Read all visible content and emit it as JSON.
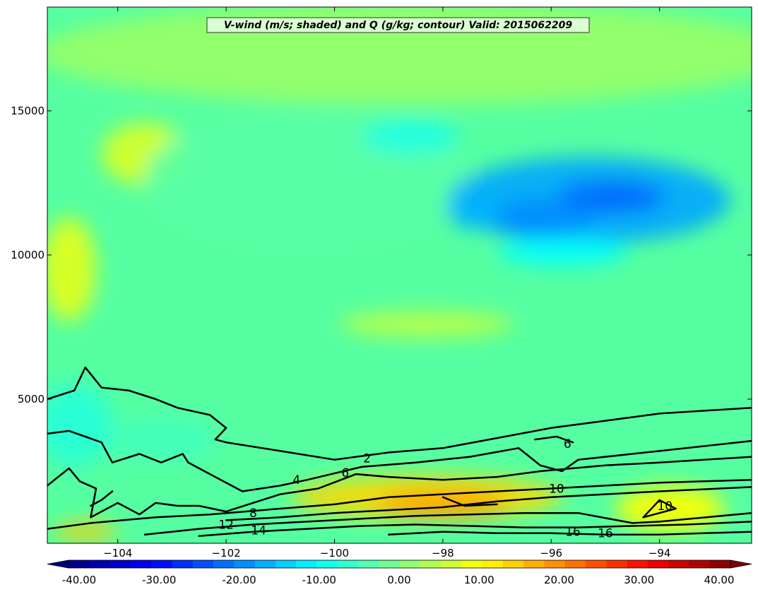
{
  "chart_data": {
    "type": "heatmap",
    "title": "V-wind (m/s; shaded) and Q (g/kg; contour) Valid: 2015062209",
    "xlabel": "",
    "ylabel": "",
    "xlim": [
      -105.3,
      -92.3
    ],
    "ylim": [
      0,
      18600
    ],
    "x_ticks": [
      -104,
      -102,
      -100,
      -98,
      -96,
      -94
    ],
    "x_tick_labels": [
      "−104",
      "−102",
      "−100",
      "−98",
      "−96",
      "−94"
    ],
    "y_ticks": [
      5000,
      10000,
      15000
    ],
    "y_tick_labels": [
      "5000",
      "10000",
      "15000"
    ],
    "shading": {
      "variable": "V-wind",
      "units": "m/s",
      "colorbar_range": [
        -40,
        40
      ],
      "colorbar_ticks": [
        -40,
        -30,
        -20,
        -10,
        0,
        10,
        20,
        30,
        40
      ],
      "colorbar_tick_labels": [
        "-40.00",
        "-30.00",
        "-20.00",
        "-10.00",
        "0.00",
        "10.00",
        "20.00",
        "30.00",
        "40.00"
      ],
      "colormap": "jet",
      "colorbar_extend": "both",
      "features": [
        {
          "x": -98.5,
          "y": 17000,
          "rx": 7.0,
          "ry": 1800,
          "value": 2
        },
        {
          "x": -103.5,
          "y": 13500,
          "rx": 0.8,
          "ry": 1100,
          "value": 7
        },
        {
          "x": -104.9,
          "y": 9500,
          "rx": 0.5,
          "ry": 1800,
          "value": 8
        },
        {
          "x": -100.5,
          "y": 12700,
          "rx": 3.0,
          "ry": 2300,
          "value": -3
        },
        {
          "x": -98.6,
          "y": 14100,
          "rx": 0.9,
          "ry": 600,
          "value": -8
        },
        {
          "x": -95.3,
          "y": 11900,
          "rx": 2.6,
          "ry": 1500,
          "value": -17
        },
        {
          "x": -94.9,
          "y": 12000,
          "rx": 1.0,
          "ry": 550,
          "value": -22
        },
        {
          "x": -96.2,
          "y": 11300,
          "rx": 1.0,
          "ry": 650,
          "value": -19
        },
        {
          "x": -97.4,
          "y": 11500,
          "rx": 0.5,
          "ry": 600,
          "value": -16
        },
        {
          "x": -95.8,
          "y": 10100,
          "rx": 1.2,
          "ry": 500,
          "value": -10
        },
        {
          "x": -104.8,
          "y": 4100,
          "rx": 0.7,
          "ry": 1400,
          "value": -7
        },
        {
          "x": -103.2,
          "y": 3600,
          "rx": 1.0,
          "ry": 700,
          "value": -5
        },
        {
          "x": -98.3,
          "y": 7600,
          "rx": 1.6,
          "ry": 450,
          "value": 5
        },
        {
          "x": -98.3,
          "y": 1600,
          "rx": 2.5,
          "ry": 750,
          "value": 13
        },
        {
          "x": -98.0,
          "y": 1350,
          "rx": 1.2,
          "ry": 500,
          "value": 17
        },
        {
          "x": -93.8,
          "y": 1200,
          "rx": 1.0,
          "ry": 800,
          "value": 10
        },
        {
          "x": -104.6,
          "y": 400,
          "rx": 0.6,
          "ry": 300,
          "value": 14
        }
      ]
    },
    "series": [
      {
        "name": "",
        "label": "2",
        "label_at": [
          -99.4,
          2950
        ],
        "values": [
          [
            -105.3,
            5000
          ],
          [
            -104.8,
            5300
          ],
          [
            -104.6,
            6100
          ],
          [
            -104.3,
            5400
          ],
          [
            -103.8,
            5300
          ],
          [
            -103.3,
            5000
          ],
          [
            -102.9,
            4700
          ],
          [
            -102.3,
            4450
          ],
          [
            -102.0,
            4000
          ],
          [
            -102.2,
            3600
          ],
          [
            -102.0,
            3500
          ],
          [
            -101.0,
            3200
          ],
          [
            -100.0,
            2900
          ],
          [
            -99.0,
            3150
          ],
          [
            -98.0,
            3300
          ],
          [
            -97.0,
            3650
          ],
          [
            -96.0,
            4000
          ],
          [
            -95.0,
            4250
          ],
          [
            -94.0,
            4500
          ],
          [
            -92.3,
            4700
          ]
        ]
      },
      {
        "name": "",
        "label": "4",
        "label_at": [
          -100.7,
          2200
        ],
        "values": [
          [
            -105.3,
            3800
          ],
          [
            -104.9,
            3900
          ],
          [
            -104.3,
            3500
          ],
          [
            -104.1,
            2800
          ],
          [
            -103.6,
            3100
          ],
          [
            -103.2,
            2800
          ],
          [
            -102.8,
            3100
          ],
          [
            -102.7,
            2800
          ],
          [
            -102.4,
            2500
          ],
          [
            -101.7,
            1800
          ],
          [
            -101.0,
            2000
          ],
          [
            -100.5,
            2200
          ],
          [
            -99.5,
            2650
          ],
          [
            -98.5,
            2800
          ],
          [
            -97.5,
            3000
          ],
          [
            -96.6,
            3300
          ],
          [
            -96.2,
            2700
          ],
          [
            -95.8,
            2500
          ],
          [
            -95.5,
            2900
          ],
          [
            -94.0,
            3200
          ],
          [
            -92.3,
            3550
          ]
        ]
      },
      {
        "name": "",
        "label": "6",
        "label_at": [
          -99.8,
          2450
        ],
        "values": [
          [
            -105.3,
            2000
          ],
          [
            -104.9,
            2600
          ],
          [
            -104.7,
            2150
          ],
          [
            -104.4,
            1900
          ],
          [
            -104.5,
            900
          ],
          [
            -104.0,
            1400
          ],
          [
            -103.6,
            1000
          ],
          [
            -103.3,
            1400
          ],
          [
            -102.9,
            1300
          ],
          [
            -102.5,
            1300
          ],
          [
            -102.0,
            1100
          ],
          [
            -101.0,
            1700
          ],
          [
            -100.3,
            1900
          ],
          [
            -99.6,
            2400
          ],
          [
            -99.0,
            2300
          ],
          [
            -98.0,
            2200
          ],
          [
            -97.0,
            2300
          ],
          [
            -96.2,
            2500
          ],
          [
            -95.0,
            2700
          ],
          [
            -94.0,
            2800
          ],
          [
            -92.3,
            3000
          ]
        ]
      },
      {
        "name": "",
        "label": "8",
        "label_at": [
          -101.5,
          1050
        ],
        "values": [
          [
            -105.3,
            500
          ],
          [
            -104.5,
            700
          ],
          [
            -103.3,
            900
          ],
          [
            -102.3,
            1000
          ],
          [
            -101.0,
            1200
          ],
          [
            -100.0,
            1350
          ],
          [
            -99.0,
            1600
          ],
          [
            -98.0,
            1700
          ],
          [
            -97.0,
            1800
          ],
          [
            -96.0,
            1900
          ],
          [
            -95.0,
            2000
          ],
          [
            -94.0,
            2100
          ],
          [
            -92.3,
            2200
          ]
        ]
      },
      {
        "name": "",
        "label": "10",
        "label_at": [
          -95.9,
          1900
        ],
        "values": [
          [
            -102.0,
            800
          ],
          [
            -101.0,
            900
          ],
          [
            -100.0,
            1050
          ],
          [
            -99.0,
            1150
          ],
          [
            -98.0,
            1250
          ],
          [
            -97.0,
            1450
          ],
          [
            -96.0,
            1600
          ],
          [
            -95.0,
            1700
          ],
          [
            -94.0,
            1800
          ],
          [
            -92.3,
            1950
          ]
        ]
      },
      {
        "name": "",
        "label": "12",
        "label_at": [
          -102.0,
          650
        ],
        "values": [
          [
            -103.5,
            300
          ],
          [
            -102.5,
            500
          ],
          [
            -101.5,
            650
          ],
          [
            -100.5,
            750
          ],
          [
            -99.5,
            850
          ],
          [
            -98.5,
            950
          ],
          [
            -97.5,
            1000
          ],
          [
            -96.5,
            1050
          ],
          [
            -95.5,
            1050
          ],
          [
            -94.5,
            700
          ],
          [
            -94.0,
            750
          ],
          [
            -92.3,
            1050
          ]
        ]
      },
      {
        "name": "",
        "label": "14",
        "label_at": [
          -101.4,
          450
        ],
        "values": [
          [
            -102.5,
            250
          ],
          [
            -101.5,
            400
          ],
          [
            -100.5,
            500
          ],
          [
            -99.5,
            600
          ],
          [
            -98.5,
            650
          ],
          [
            -97.5,
            600
          ],
          [
            -96.5,
            550
          ],
          [
            -95.5,
            550
          ],
          [
            -94.5,
            600
          ],
          [
            -93.5,
            650
          ],
          [
            -92.3,
            750
          ]
        ]
      },
      {
        "name": "",
        "label": "16",
        "label_at": [
          -95.6,
          400
        ],
        "values": [
          [
            -99.0,
            300
          ],
          [
            -98.0,
            400
          ],
          [
            -97.0,
            350
          ],
          [
            -96.0,
            350
          ],
          [
            -95.0,
            300
          ],
          [
            -94.0,
            300
          ],
          [
            -92.3,
            400
          ]
        ]
      },
      {
        "name": "",
        "label": "16",
        "label_at": [
          -95.0,
          350
        ],
        "values": [
          [
            -98.0,
            1600
          ],
          [
            -97.6,
            1300
          ],
          [
            -97.0,
            1350
          ]
        ]
      },
      {
        "name": "",
        "label": "10",
        "label_at": [
          -93.9,
          1300
        ],
        "values": [
          [
            -94.3,
            900
          ],
          [
            -94.0,
            1500
          ],
          [
            -93.7,
            1200
          ],
          [
            -94.3,
            900
          ]
        ]
      },
      {
        "name": "",
        "label": "6",
        "label_at": [
          -95.7,
          3450
        ],
        "values": [
          [
            -96.3,
            3600
          ],
          [
            -95.9,
            3700
          ],
          [
            -95.6,
            3500
          ]
        ]
      },
      {
        "name": "",
        "label": "",
        "label_at": [
          -104.4,
          1500
        ],
        "values": [
          [
            -104.5,
            1300
          ],
          [
            -104.3,
            1500
          ],
          [
            -104.1,
            1800
          ]
        ]
      }
    ]
  }
}
